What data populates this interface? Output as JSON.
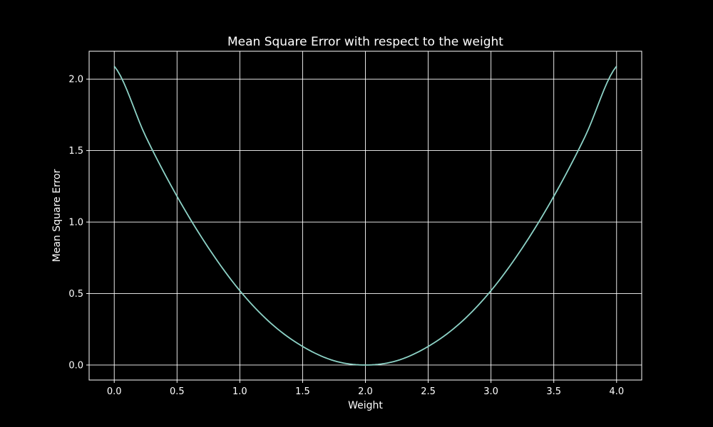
{
  "chart_data": {
    "type": "line",
    "title": "Mean Square Error with respect to the weight",
    "xlabel": "Weight",
    "ylabel": "Mean Square Error",
    "xlim": [
      -0.2,
      4.2
    ],
    "ylim": [
      -0.105,
      2.195
    ],
    "xticks": [
      0.0,
      0.5,
      1.0,
      1.5,
      2.0,
      2.5,
      3.0,
      3.5,
      4.0
    ],
    "yticks": [
      0.0,
      0.5,
      1.0,
      1.5,
      2.0
    ],
    "xtick_labels": [
      "0.0",
      "0.5",
      "1.0",
      "1.5",
      "2.0",
      "2.5",
      "3.0",
      "3.5",
      "4.0"
    ],
    "ytick_labels": [
      "0.0",
      "0.5",
      "1.0",
      "1.5",
      "2.0"
    ],
    "grid": true,
    "series": [
      {
        "color": "#8dd3c7",
        "x": [
          0.0,
          0.25,
          0.5,
          0.75,
          1.0,
          1.25,
          1.5,
          1.75,
          2.0,
          2.25,
          2.5,
          2.75,
          3.0,
          3.25,
          3.5,
          3.75,
          4.0
        ],
        "y": [
          2.09,
          1.6,
          1.18,
          0.82,
          0.52,
          0.29,
          0.13,
          0.03,
          0.0,
          0.03,
          0.13,
          0.29,
          0.52,
          0.82,
          1.18,
          1.6,
          2.09
        ]
      }
    ]
  },
  "colors": {
    "background": "#000000",
    "foreground": "#ffffff",
    "grid": "#ffffff",
    "line": "#8dd3c7"
  }
}
